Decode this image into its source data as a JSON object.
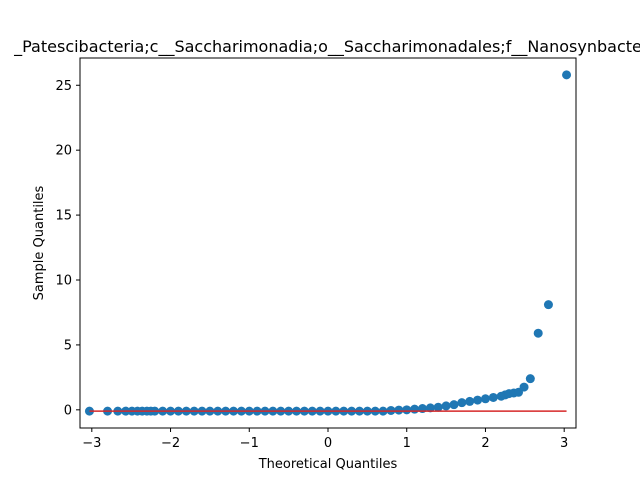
{
  "chart_data": {
    "type": "scatter",
    "title": "_Patescibacteria;c__Saccharimonadia;o__Saccharimonadales;f__Nanosynbacte",
    "xlabel": "Theoretical Quantiles",
    "ylabel": "Sample Quantiles",
    "xlim": [
      -3.15,
      3.15
    ],
    "ylim": [
      -1.4,
      27.1
    ],
    "x_ticks": [
      -3,
      -2,
      -1,
      0,
      1,
      2,
      3
    ],
    "x_tick_labels": [
      "−3",
      "−2",
      "−1",
      "0",
      "1",
      "2",
      "3"
    ],
    "y_ticks": [
      0,
      5,
      10,
      15,
      20,
      25
    ],
    "y_tick_labels": [
      "0",
      "5",
      "10",
      "15",
      "20",
      "25"
    ],
    "grid": false,
    "series": [
      {
        "kind": "points",
        "color": "#1f77b4",
        "x": [
          -3.03,
          -2.8,
          -2.67,
          -2.57,
          -2.49,
          -2.42,
          -2.36,
          -2.3,
          -2.25,
          -2.2,
          -2.1,
          -2.0,
          -1.9,
          -1.8,
          -1.7,
          -1.6,
          -1.5,
          -1.4,
          -1.3,
          -1.2,
          -1.1,
          -1.0,
          -0.9,
          -0.8,
          -0.7,
          -0.6,
          -0.5,
          -0.4,
          -0.3,
          -0.2,
          -0.1,
          0.0,
          0.1,
          0.2,
          0.3,
          0.4,
          0.5,
          0.6,
          0.7,
          0.8,
          0.9,
          1.0,
          1.1,
          1.2,
          1.3,
          1.4,
          1.5,
          1.6,
          1.7,
          1.8,
          1.9,
          2.0,
          2.1,
          2.2,
          2.25,
          2.3,
          2.36,
          2.42,
          2.49,
          2.57,
          2.67,
          2.8,
          3.03
        ],
        "y": [
          -0.1,
          -0.1,
          -0.1,
          -0.1,
          -0.1,
          -0.1,
          -0.1,
          -0.1,
          -0.1,
          -0.1,
          -0.1,
          -0.1,
          -0.1,
          -0.1,
          -0.1,
          -0.1,
          -0.1,
          -0.1,
          -0.1,
          -0.1,
          -0.1,
          -0.1,
          -0.1,
          -0.1,
          -0.1,
          -0.1,
          -0.1,
          -0.1,
          -0.1,
          -0.1,
          -0.1,
          -0.1,
          -0.1,
          -0.1,
          -0.1,
          -0.1,
          -0.1,
          -0.1,
          -0.1,
          -0.05,
          -0.02,
          0.0,
          0.05,
          0.1,
          0.15,
          0.2,
          0.3,
          0.4,
          0.55,
          0.65,
          0.75,
          0.85,
          0.95,
          1.05,
          1.15,
          1.25,
          1.3,
          1.35,
          1.75,
          2.4,
          5.9,
          8.1,
          25.8
        ]
      },
      {
        "kind": "reference-line",
        "color": "#d62728",
        "x": [
          -3.03,
          3.03
        ],
        "y": [
          -0.1,
          -0.1
        ]
      }
    ]
  }
}
